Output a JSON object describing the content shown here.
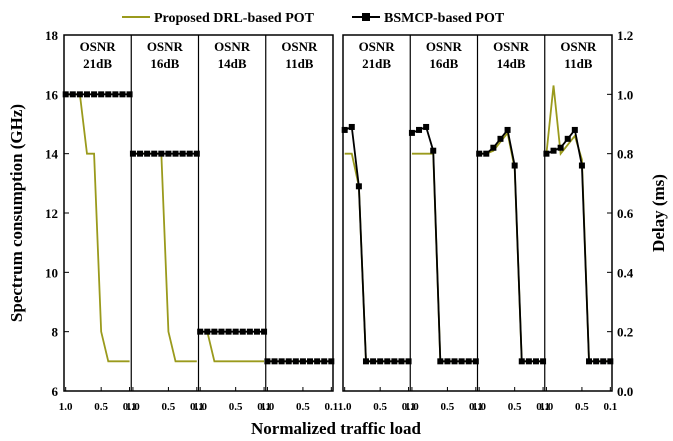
{
  "chart_data": [
    {
      "type": "line",
      "ylabel": "Spectrum consumption (GHz)",
      "ylim": [
        6,
        18
      ],
      "yticks": [
        "6",
        "8",
        "10",
        "12",
        "14",
        "16",
        "18"
      ],
      "xlabel": "Normalized traffic load",
      "xticks": [
        "1.0",
        "0.5",
        "0.1"
      ],
      "panels": [
        {
          "label": "OSNR\n21dB",
          "x": [
            1.0,
            0.9,
            0.8,
            0.7,
            0.6,
            0.5,
            0.4,
            0.3,
            0.2,
            0.1
          ],
          "series": [
            {
              "name": "Proposed DRL-based POT",
              "values": [
                16,
                16,
                16,
                14,
                14,
                8,
                7,
                7,
                7,
                7
              ]
            },
            {
              "name": "BSMCP-based POT",
              "values": [
                16,
                16,
                16,
                16,
                16,
                16,
                16,
                16,
                16,
                16
              ]
            }
          ]
        },
        {
          "label": "OSNR\n16dB",
          "x": [
            1.0,
            0.9,
            0.8,
            0.7,
            0.6,
            0.5,
            0.4,
            0.3,
            0.2,
            0.1
          ],
          "series": [
            {
              "name": "Proposed DRL-based POT",
              "values": [
                14,
                14,
                14,
                14,
                14,
                8,
                7,
                7,
                7,
                7
              ]
            },
            {
              "name": "BSMCP-based POT",
              "values": [
                14,
                14,
                14,
                14,
                14,
                14,
                14,
                14,
                14,
                14
              ]
            }
          ]
        },
        {
          "label": "OSNR\n14dB",
          "x": [
            1.0,
            0.9,
            0.8,
            0.7,
            0.6,
            0.5,
            0.4,
            0.3,
            0.2,
            0.1
          ],
          "series": [
            {
              "name": "Proposed DRL-based POT",
              "values": [
                8,
                8,
                7,
                7,
                7,
                7,
                7,
                7,
                7,
                7
              ]
            },
            {
              "name": "BSMCP-based POT",
              "values": [
                8,
                8,
                8,
                8,
                8,
                8,
                8,
                8,
                8,
                8
              ]
            }
          ]
        },
        {
          "label": "OSNR\n11dB",
          "x": [
            1.0,
            0.9,
            0.8,
            0.7,
            0.6,
            0.5,
            0.4,
            0.3,
            0.2,
            0.1
          ],
          "series": [
            {
              "name": "Proposed DRL-based POT",
              "values": [
                7,
                7,
                7,
                7,
                7,
                7,
                7,
                7,
                7,
                7
              ]
            },
            {
              "name": "BSMCP-based POT",
              "values": [
                7,
                7,
                7,
                7,
                7,
                7,
                7,
                7,
                7,
                7
              ]
            }
          ]
        }
      ]
    },
    {
      "type": "line",
      "ylabel": "Delay (ms)",
      "ylim": [
        0.0,
        1.2
      ],
      "yticks": [
        "0.0",
        "0.2",
        "0.4",
        "0.6",
        "0.8",
        "1.0",
        "1.2"
      ],
      "xlabel": "Normalized traffic load",
      "xticks": [
        "1.0",
        "0.5",
        "0.1"
      ],
      "panels": [
        {
          "label": "OSNR\n21dB",
          "x": [
            1.0,
            0.9,
            0.8,
            0.7,
            0.6,
            0.5,
            0.4,
            0.3,
            0.2,
            0.1
          ],
          "series": [
            {
              "name": "Proposed DRL-based POT",
              "values": [
                0.8,
                0.8,
                0.69,
                0.1,
                0.1,
                0.1,
                0.1,
                0.1,
                0.1,
                0.1
              ]
            },
            {
              "name": "BSMCP-based POT",
              "values": [
                0.88,
                0.89,
                0.69,
                0.1,
                0.1,
                0.1,
                0.1,
                0.1,
                0.1,
                0.1
              ]
            }
          ]
        },
        {
          "label": "OSNR\n16dB",
          "x": [
            1.0,
            0.9,
            0.8,
            0.7,
            0.6,
            0.5,
            0.4,
            0.3,
            0.2,
            0.1
          ],
          "series": [
            {
              "name": "Proposed DRL-based POT",
              "values": [
                0.8,
                0.8,
                0.8,
                0.8,
                0.1,
                0.1,
                0.1,
                0.1,
                0.1,
                0.1
              ]
            },
            {
              "name": "BSMCP-based POT",
              "values": [
                0.87,
                0.88,
                0.89,
                0.81,
                0.1,
                0.1,
                0.1,
                0.1,
                0.1,
                0.1
              ]
            }
          ]
        },
        {
          "label": "OSNR\n14dB",
          "x": [
            1.0,
            0.9,
            0.8,
            0.7,
            0.6,
            0.5,
            0.4,
            0.3,
            0.2,
            0.1
          ],
          "series": [
            {
              "name": "Proposed DRL-based POT",
              "values": [
                0.8,
                0.8,
                0.81,
                0.84,
                0.87,
                0.75,
                0.1,
                0.1,
                0.1,
                0.1
              ]
            },
            {
              "name": "BSMCP-based POT",
              "values": [
                0.8,
                0.8,
                0.82,
                0.85,
                0.88,
                0.76,
                0.1,
                0.1,
                0.1,
                0.1
              ]
            }
          ]
        },
        {
          "label": "OSNR\n11dB",
          "x": [
            1.0,
            0.9,
            0.8,
            0.7,
            0.6,
            0.5,
            0.4,
            0.3,
            0.2,
            0.1
          ],
          "series": [
            {
              "name": "Proposed DRL-based POT",
              "values": [
                0.8,
                1.03,
                0.8,
                0.83,
                0.86,
                0.78,
                0.1,
                0.1,
                0.1,
                0.1
              ]
            },
            {
              "name": "BSMCP-based POT",
              "values": [
                0.8,
                0.81,
                0.82,
                0.85,
                0.88,
                0.76,
                0.1,
                0.1,
                0.1,
                0.1
              ]
            }
          ]
        }
      ]
    }
  ],
  "legend": [
    {
      "name": "Proposed DRL-based POT",
      "color": "#9a9a1c",
      "marker": "none"
    },
    {
      "name": "BSMCP-based POT",
      "color": "#000000",
      "marker": "square"
    }
  ],
  "axis_label": "Normalized traffic load"
}
